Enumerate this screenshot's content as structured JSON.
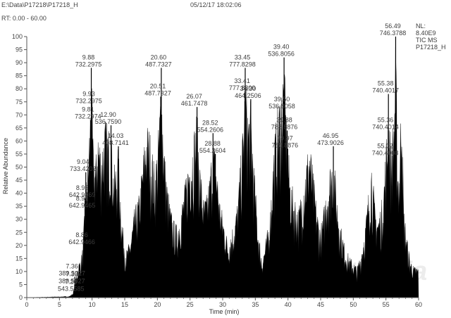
{
  "header": {
    "file_path": "E:\\Data\\P17218\\P17218_H",
    "timestamp": "05/12/17 18:02:06",
    "rt_range": "RT: 0.00 - 60.00"
  },
  "info_box": [
    "NL:",
    "8.40E9",
    "TIC  MS",
    "P17218_H"
  ],
  "watermark": "antpedia",
  "colors": {
    "trace": "#000000",
    "axis": "#555555",
    "text": "#3c3c3c",
    "background": "#ffffff"
  },
  "chart_data": {
    "type": "area",
    "title": "",
    "xlabel": "Time (min)",
    "ylabel": "Relative Abundance",
    "xlim": [
      0,
      60
    ],
    "ylim": [
      0,
      100
    ],
    "x_ticks": [
      0,
      5,
      10,
      15,
      20,
      25,
      30,
      35,
      40,
      45,
      50,
      55,
      60
    ],
    "y_ticks": [
      0,
      5,
      10,
      15,
      20,
      25,
      30,
      35,
      40,
      45,
      50,
      55,
      60,
      65,
      70,
      75,
      80,
      85,
      90,
      95,
      100
    ],
    "grid": false,
    "peaks": [
      {
        "rt": 7.2,
        "rel": 2,
        "label_rt": "7.20",
        "label_mz": "543.5585"
      },
      {
        "rt": 7.33,
        "rel": 5,
        "label_rt": "7.33",
        "label_mz": "389.5027"
      },
      {
        "rt": 7.36,
        "rel": 8,
        "label_rt": "7.36",
        "label_mz": "389.5027"
      },
      {
        "rt": 8.86,
        "rel": 20,
        "label_rt": "8.86",
        "label_mz": "642.9466"
      },
      {
        "rt": 8.91,
        "rel": 34,
        "label_rt": "8.91",
        "label_mz": "642.9465"
      },
      {
        "rt": 8.92,
        "rel": 38,
        "label_rt": "8.92",
        "label_mz": "642.9469"
      },
      {
        "rt": 9.04,
        "rel": 48,
        "label_rt": "9.04",
        "label_mz": "733.4202"
      },
      {
        "rt": 9.81,
        "rel": 68,
        "label_rt": "9.81",
        "label_mz": "732.2974"
      },
      {
        "rt": 9.88,
        "rel": 88,
        "label_rt": "9.88",
        "label_mz": "732.2975"
      },
      {
        "rt": 9.93,
        "rel": 74,
        "label_rt": "9.93",
        "label_mz": "732.2975"
      },
      {
        "rt": 12.9,
        "rel": 66,
        "label_rt": "12.90",
        "label_mz": "536.7590"
      },
      {
        "rt": 14.03,
        "rel": 58,
        "label_rt": "14.03",
        "label_mz": "408.7141"
      },
      {
        "rt": 20.51,
        "rel": 77,
        "label_rt": "20.51",
        "label_mz": "487.7327"
      },
      {
        "rt": 20.6,
        "rel": 88,
        "label_rt": "20.60",
        "label_mz": "487.7327"
      },
      {
        "rt": 26.07,
        "rel": 73,
        "label_rt": "26.07",
        "label_mz": "461.7478"
      },
      {
        "rt": 28.52,
        "rel": 63,
        "label_rt": "28.52",
        "label_mz": "554.2606"
      },
      {
        "rt": 28.88,
        "rel": 55,
        "label_rt": "28.88",
        "label_mz": "554.2604"
      },
      {
        "rt": 33.41,
        "rel": 79,
        "label_rt": "33.41",
        "label_mz": "777.8300"
      },
      {
        "rt": 33.45,
        "rel": 88,
        "label_rt": "33.45",
        "label_mz": "777.8298"
      },
      {
        "rt": 34.3,
        "rel": 76,
        "label_rt": "34.30",
        "label_mz": "464.2506"
      },
      {
        "rt": 39.4,
        "rel": 92,
        "label_rt": "39.40",
        "label_mz": "536.8056"
      },
      {
        "rt": 39.5,
        "rel": 72,
        "label_rt": "39.50",
        "label_mz": "536.8058"
      },
      {
        "rt": 39.88,
        "rel": 64,
        "label_rt": "39.88",
        "label_mz": "788.8876"
      },
      {
        "rt": 39.97,
        "rel": 57,
        "label_rt": "39.97",
        "label_mz": "788.8876"
      },
      {
        "rt": 46.95,
        "rel": 58,
        "label_rt": "46.95",
        "label_mz": "473.9026"
      },
      {
        "rt": 55.32,
        "rel": 54,
        "label_rt": "55.32",
        "label_mz": "740.4008"
      },
      {
        "rt": 55.36,
        "rel": 64,
        "label_rt": "55.36",
        "label_mz": "740.4014"
      },
      {
        "rt": 55.38,
        "rel": 78,
        "label_rt": "55.38",
        "label_mz": "740.4017"
      },
      {
        "rt": 56.49,
        "rel": 100,
        "label_rt": "56.49",
        "label_mz": "746.3788"
      }
    ],
    "envelope": [
      [
        0,
        0
      ],
      [
        6.5,
        0.5
      ],
      [
        7,
        1.5
      ],
      [
        7.3,
        4
      ],
      [
        7.6,
        9
      ],
      [
        8,
        14
      ],
      [
        8.5,
        18
      ],
      [
        8.9,
        35
      ],
      [
        9.2,
        50
      ],
      [
        9.5,
        60
      ],
      [
        9.88,
        88
      ],
      [
        10.2,
        58
      ],
      [
        10.6,
        55
      ],
      [
        10.9,
        68
      ],
      [
        11.3,
        60
      ],
      [
        11.6,
        62
      ],
      [
        12,
        70
      ],
      [
        12.4,
        66
      ],
      [
        12.9,
        66
      ],
      [
        13.3,
        50
      ],
      [
        13.7,
        53
      ],
      [
        14.03,
        58
      ],
      [
        14.6,
        30
      ],
      [
        15.2,
        18
      ],
      [
        15.8,
        22
      ],
      [
        16.5,
        34
      ],
      [
        17.2,
        40
      ],
      [
        17.8,
        55
      ],
      [
        18.3,
        68
      ],
      [
        18.8,
        66
      ],
      [
        19.2,
        58
      ],
      [
        19.6,
        50
      ],
      [
        20.1,
        62
      ],
      [
        20.6,
        88
      ],
      [
        21,
        62
      ],
      [
        21.5,
        45
      ],
      [
        22,
        35
      ],
      [
        22.5,
        30
      ],
      [
        23,
        28
      ],
      [
        23.6,
        35
      ],
      [
        24.2,
        44
      ],
      [
        24.8,
        55
      ],
      [
        25.4,
        62
      ],
      [
        26.07,
        73
      ],
      [
        26.6,
        50
      ],
      [
        27.1,
        38
      ],
      [
        27.6,
        40
      ],
      [
        28.1,
        50
      ],
      [
        28.52,
        63
      ],
      [
        29,
        55
      ],
      [
        29.6,
        38
      ],
      [
        30.2,
        30
      ],
      [
        30.8,
        22
      ],
      [
        31.3,
        26
      ],
      [
        31.8,
        30
      ],
      [
        32.3,
        38
      ],
      [
        32.8,
        56
      ],
      [
        33.2,
        70
      ],
      [
        33.45,
        88
      ],
      [
        33.9,
        74
      ],
      [
        34.3,
        76
      ],
      [
        34.8,
        52
      ],
      [
        35.4,
        28
      ],
      [
        36,
        15
      ],
      [
        36.6,
        22
      ],
      [
        37.2,
        32
      ],
      [
        37.8,
        58
      ],
      [
        38.3,
        72
      ],
      [
        38.8,
        80
      ],
      [
        39.4,
        92
      ],
      [
        39.9,
        64
      ],
      [
        40.4,
        45
      ],
      [
        41,
        40
      ],
      [
        41.6,
        34
      ],
      [
        42.2,
        44
      ],
      [
        42.8,
        54
      ],
      [
        43.3,
        62
      ],
      [
        43.8,
        50
      ],
      [
        44.3,
        38
      ],
      [
        44.8,
        28
      ],
      [
        45.3,
        30
      ],
      [
        45.8,
        42
      ],
      [
        46.3,
        50
      ],
      [
        46.95,
        58
      ],
      [
        47.5,
        40
      ],
      [
        48.1,
        28
      ],
      [
        48.7,
        20
      ],
      [
        49.4,
        16
      ],
      [
        50,
        14
      ],
      [
        50.6,
        12
      ],
      [
        51.2,
        18
      ],
      [
        51.8,
        28
      ],
      [
        52.3,
        40
      ],
      [
        52.8,
        54
      ],
      [
        53.3,
        36
      ],
      [
        53.8,
        32
      ],
      [
        54.3,
        36
      ],
      [
        54.8,
        50
      ],
      [
        55.38,
        78
      ],
      [
        55.8,
        60
      ],
      [
        56.2,
        72
      ],
      [
        56.49,
        100
      ],
      [
        56.8,
        55
      ],
      [
        57.1,
        50
      ],
      [
        57.4,
        94
      ],
      [
        57.7,
        36
      ],
      [
        58.2,
        24
      ],
      [
        58.7,
        15
      ],
      [
        59.3,
        12
      ],
      [
        60,
        12
      ]
    ]
  }
}
